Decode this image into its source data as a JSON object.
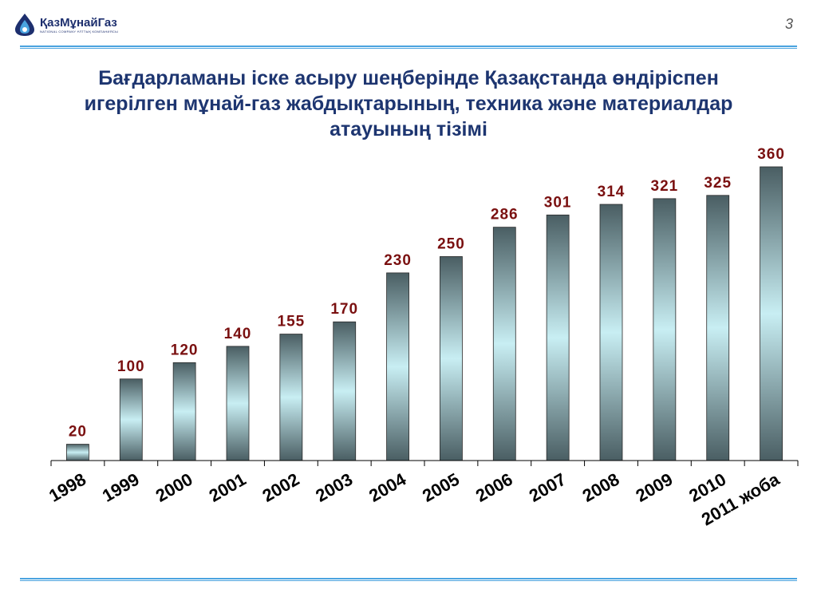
{
  "page_number": "3",
  "logo": {
    "name": "ҚазМұнайГаз",
    "subtitle": "NATIONAL COMPANY ҰЛТТЫҚ КОМПАНИЯСЫ"
  },
  "title_lines": [
    "Бағдарламаны іске асыру шеңберінде Қазақстанда өндіріспен",
    "игерілген мұнай-газ жабдықтарының, техника және материалдар",
    "атауының тізімі"
  ],
  "colors": {
    "title": "#1d3570",
    "data_label": "#7a1010",
    "rule": "#4aa3df",
    "bar_dark": "#4a5e63",
    "bar_light": "#c8eef3"
  },
  "chart_data": {
    "type": "bar",
    "categories": [
      "1998",
      "1999",
      "2000",
      "2001",
      "2002",
      "2003",
      "2004",
      "2005",
      "2006",
      "2007",
      "2008",
      "2009",
      "2010",
      "2011 жоба"
    ],
    "values": [
      20,
      100,
      120,
      140,
      155,
      170,
      230,
      250,
      286,
      301,
      314,
      321,
      325,
      360
    ],
    "title": "",
    "xlabel": "",
    "ylabel": "",
    "ylim": [
      0,
      360
    ],
    "grid": false,
    "legend": "none",
    "data_labels": true
  }
}
